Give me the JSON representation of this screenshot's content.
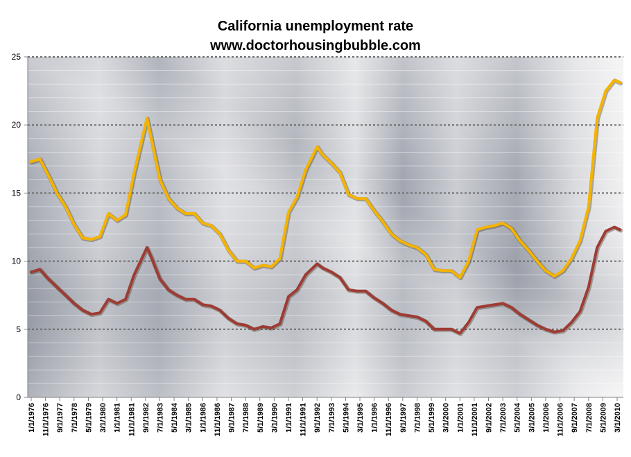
{
  "chart_data": {
    "type": "line",
    "title": "California unemployment rate",
    "subtitle": "www.doctorhousingbubble.com",
    "xlabel": "",
    "ylabel": "",
    "ylim": [
      0,
      25
    ],
    "yticks": [
      0,
      5,
      10,
      15,
      20,
      25
    ],
    "grid": true,
    "legend": "none",
    "x_tick_labels": [
      "1/1/1976",
      "11/1/1976",
      "9/1/1977",
      "7/1/1978",
      "5/1/1979",
      "3/1/1980",
      "1/1/1981",
      "11/1/1981",
      "9/1/1982",
      "7/1/1983",
      "5/1/1984",
      "3/1/1985",
      "1/1/1986",
      "11/1/1986",
      "9/1/1987",
      "7/1/1988",
      "5/1/1989",
      "3/1/1990",
      "1/1/1991",
      "11/1/1991",
      "9/1/1992",
      "7/1/1993",
      "5/1/1994",
      "3/1/1995",
      "1/1/1996",
      "11/1/1996",
      "9/1/1997",
      "7/1/1998",
      "5/1/1999",
      "3/1/2000",
      "1/1/2001",
      "11/1/2001",
      "9/1/2002",
      "7/1/2003",
      "5/1/2004",
      "3/1/2005",
      "1/1/2006",
      "11/1/2006",
      "9/1/2007",
      "7/1/2008",
      "5/1/2009",
      "3/1/2010"
    ],
    "series": [
      {
        "color": "#f5b400",
        "x": [
          "1/1/1976",
          "7/1/1976",
          "1/1/1977",
          "7/1/1977",
          "1/1/1978",
          "7/1/1978",
          "1/1/1979",
          "7/1/1979",
          "1/1/1980",
          "7/1/1980",
          "1/1/1981",
          "7/1/1981",
          "1/1/1982",
          "10/1/1982",
          "1/1/1983",
          "7/1/1983",
          "1/1/1984",
          "7/1/1984",
          "1/1/1985",
          "7/1/1985",
          "1/1/1986",
          "7/1/1986",
          "1/1/1987",
          "7/1/1987",
          "1/1/1988",
          "7/1/1988",
          "1/1/1989",
          "7/1/1989",
          "1/1/1990",
          "7/1/1990",
          "1/1/1991",
          "7/1/1991",
          "1/1/1992",
          "9/1/1992",
          "1/1/1993",
          "7/1/1993",
          "1/1/1994",
          "7/1/1994",
          "1/1/1995",
          "7/1/1995",
          "1/1/1996",
          "7/1/1996",
          "1/1/1997",
          "7/1/1997",
          "1/1/1998",
          "7/1/1998",
          "1/1/1999",
          "7/1/1999",
          "1/1/2000",
          "7/1/2000",
          "1/1/2001",
          "7/1/2001",
          "1/1/2002",
          "7/1/2002",
          "1/1/2003",
          "7/1/2003",
          "1/1/2004",
          "7/1/2004",
          "1/1/2005",
          "7/1/2005",
          "1/1/2006",
          "7/1/2006",
          "1/1/2007",
          "7/1/2007",
          "1/1/2008",
          "7/1/2008",
          "1/1/2009",
          "7/1/2009",
          "1/1/2010",
          "5/1/2010"
        ],
        "values": [
          17.3,
          17.5,
          16.3,
          15.0,
          14.0,
          12.7,
          11.7,
          11.6,
          11.8,
          13.5,
          13.0,
          13.4,
          16.5,
          20.5,
          19.0,
          16.0,
          14.6,
          13.9,
          13.5,
          13.5,
          12.8,
          12.6,
          12.0,
          10.8,
          10.0,
          10.0,
          9.5,
          9.7,
          9.6,
          10.2,
          13.6,
          14.7,
          16.7,
          18.4,
          17.8,
          17.2,
          16.5,
          14.9,
          14.6,
          14.6,
          13.7,
          12.9,
          12.0,
          11.5,
          11.2,
          11.0,
          10.5,
          9.4,
          9.3,
          9.3,
          8.8,
          10.0,
          12.3,
          12.5,
          12.6,
          12.8,
          12.4,
          11.5,
          10.8,
          10.0,
          9.3,
          8.9,
          9.3,
          10.2,
          11.5,
          14.0,
          20.5,
          22.5,
          23.3,
          23.1
        ]
      },
      {
        "color": "#9e3b34",
        "x": [
          "1/1/1976",
          "7/1/1976",
          "1/1/1977",
          "7/1/1977",
          "1/1/1978",
          "7/1/1978",
          "1/1/1979",
          "7/1/1979",
          "1/1/1980",
          "7/1/1980",
          "1/1/1981",
          "7/1/1981",
          "1/1/1982",
          "10/1/1982",
          "1/1/1983",
          "7/1/1983",
          "1/1/1984",
          "7/1/1984",
          "1/1/1985",
          "7/1/1985",
          "1/1/1986",
          "7/1/1986",
          "1/1/1987",
          "7/1/1987",
          "1/1/1988",
          "7/1/1988",
          "1/1/1989",
          "7/1/1989",
          "1/1/1990",
          "7/1/1990",
          "1/1/1991",
          "7/1/1991",
          "1/1/1992",
          "9/1/1992",
          "1/1/1993",
          "7/1/1993",
          "1/1/1994",
          "7/1/1994",
          "1/1/1995",
          "7/1/1995",
          "1/1/1996",
          "7/1/1996",
          "1/1/1997",
          "7/1/1997",
          "1/1/1998",
          "7/1/1998",
          "1/1/1999",
          "7/1/1999",
          "1/1/2000",
          "7/1/2000",
          "1/1/2001",
          "7/1/2001",
          "1/1/2002",
          "7/1/2002",
          "1/1/2003",
          "7/1/2003",
          "1/1/2004",
          "7/1/2004",
          "1/1/2005",
          "7/1/2005",
          "1/1/2006",
          "7/1/2006",
          "1/1/2007",
          "7/1/2007",
          "1/1/2008",
          "7/1/2008",
          "1/1/2009",
          "7/1/2009",
          "1/1/2010",
          "5/1/2010"
        ],
        "values": [
          9.2,
          9.4,
          8.7,
          8.1,
          7.5,
          6.9,
          6.4,
          6.1,
          6.2,
          7.2,
          6.9,
          7.2,
          9.0,
          11.0,
          10.3,
          8.7,
          7.9,
          7.5,
          7.2,
          7.2,
          6.8,
          6.7,
          6.4,
          5.8,
          5.4,
          5.3,
          5.0,
          5.2,
          5.1,
          5.4,
          7.4,
          7.9,
          9.0,
          9.8,
          9.5,
          9.2,
          8.8,
          7.9,
          7.8,
          7.8,
          7.3,
          6.9,
          6.4,
          6.1,
          6.0,
          5.9,
          5.6,
          5.0,
          5.0,
          5.0,
          4.7,
          5.5,
          6.6,
          6.7,
          6.8,
          6.9,
          6.6,
          6.1,
          5.7,
          5.3,
          5.0,
          4.8,
          4.9,
          5.5,
          6.3,
          8.1,
          11.0,
          12.2,
          12.5,
          12.3
        ]
      }
    ]
  }
}
